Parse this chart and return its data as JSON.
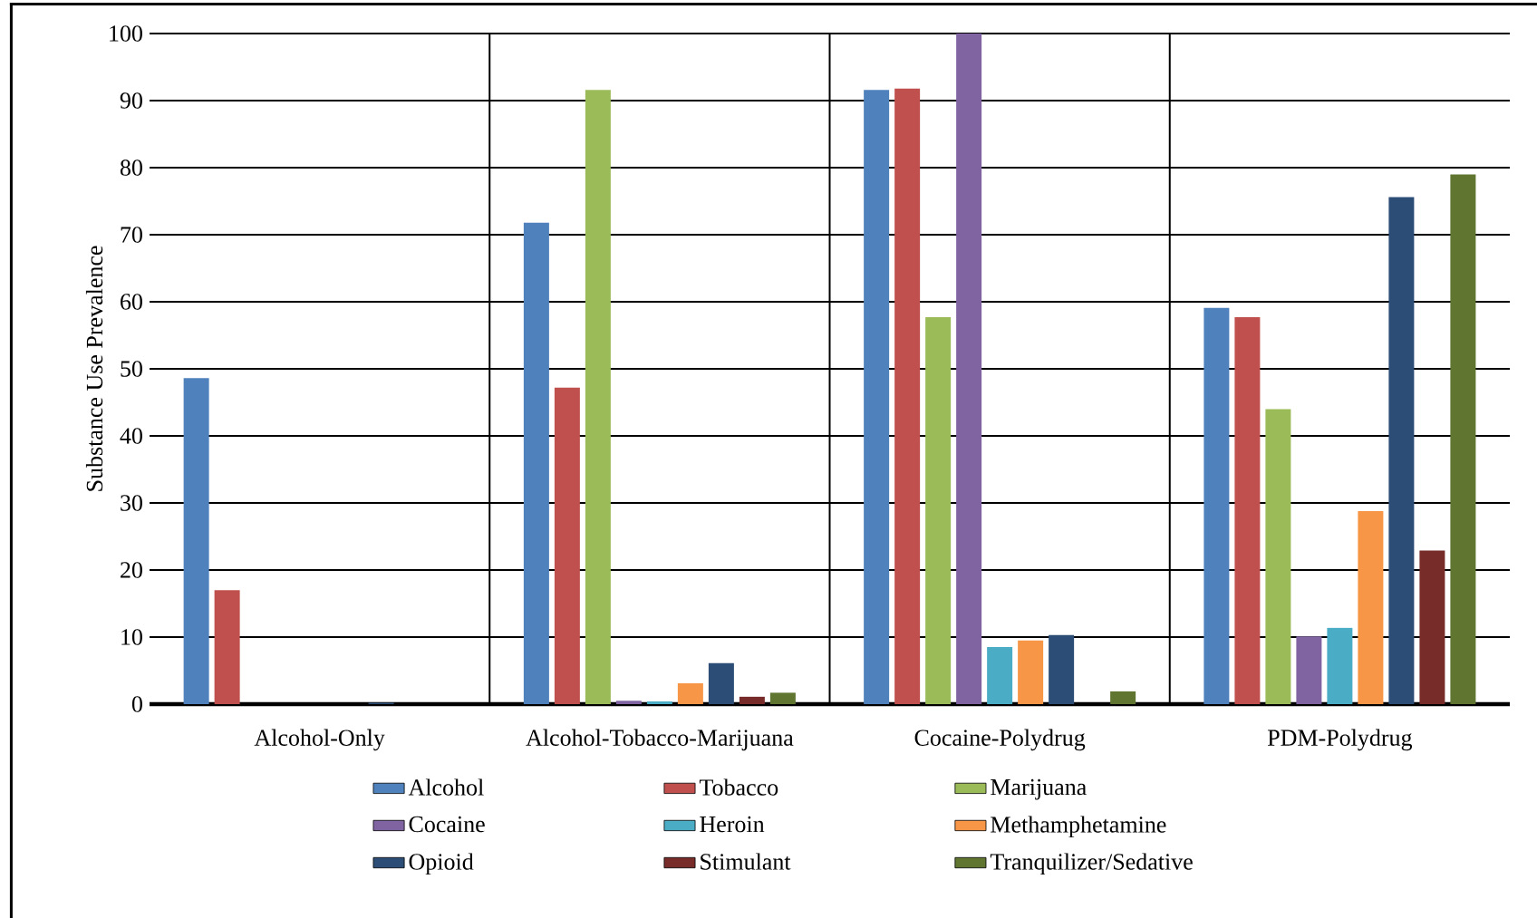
{
  "chart_data": {
    "type": "bar",
    "ylabel": "Substance Use Prevalence",
    "categories": [
      "Alcohol-Only",
      "Alcohol-Tobacco-Marijuana",
      "Cocaine-Polydrug",
      "PDM-Polydrug"
    ],
    "series": [
      {
        "name": "Alcohol",
        "color": "#4f81bd",
        "values": [
          48.6,
          71.8,
          91.6,
          59.1
        ]
      },
      {
        "name": "Tobacco",
        "color": "#c0504d",
        "values": [
          17,
          47.2,
          91.8,
          57.7
        ]
      },
      {
        "name": "Marijuana",
        "color": "#9bbb59",
        "values": [
          0,
          91.6,
          57.7,
          44.0
        ]
      },
      {
        "name": "Cocaine",
        "color": "#8064a2",
        "values": [
          0,
          0.5,
          100,
          10.1
        ]
      },
      {
        "name": "Heroin",
        "color": "#4bacc6",
        "values": [
          0,
          0.4,
          8.5,
          11.4
        ]
      },
      {
        "name": "Methamphetamine",
        "color": "#f79646",
        "values": [
          0,
          3.1,
          9.5,
          28.8
        ]
      },
      {
        "name": "Opioid",
        "color": "#2c4d75",
        "values": [
          0.2,
          6.1,
          10.3,
          75.6
        ]
      },
      {
        "name": "Stimulant",
        "color": "#772c2a",
        "values": [
          0,
          1.1,
          0,
          22.9
        ]
      },
      {
        "name": "Tranquilizer/Sedative",
        "color": "#5f7530",
        "values": [
          0,
          1.7,
          1.9,
          79.0
        ]
      }
    ],
    "ylim": [
      0,
      100
    ],
    "yticks": [
      0,
      10,
      20,
      30,
      40,
      50,
      60,
      70,
      80,
      90,
      100
    ],
    "grid": "y",
    "legend": "bottom"
  }
}
